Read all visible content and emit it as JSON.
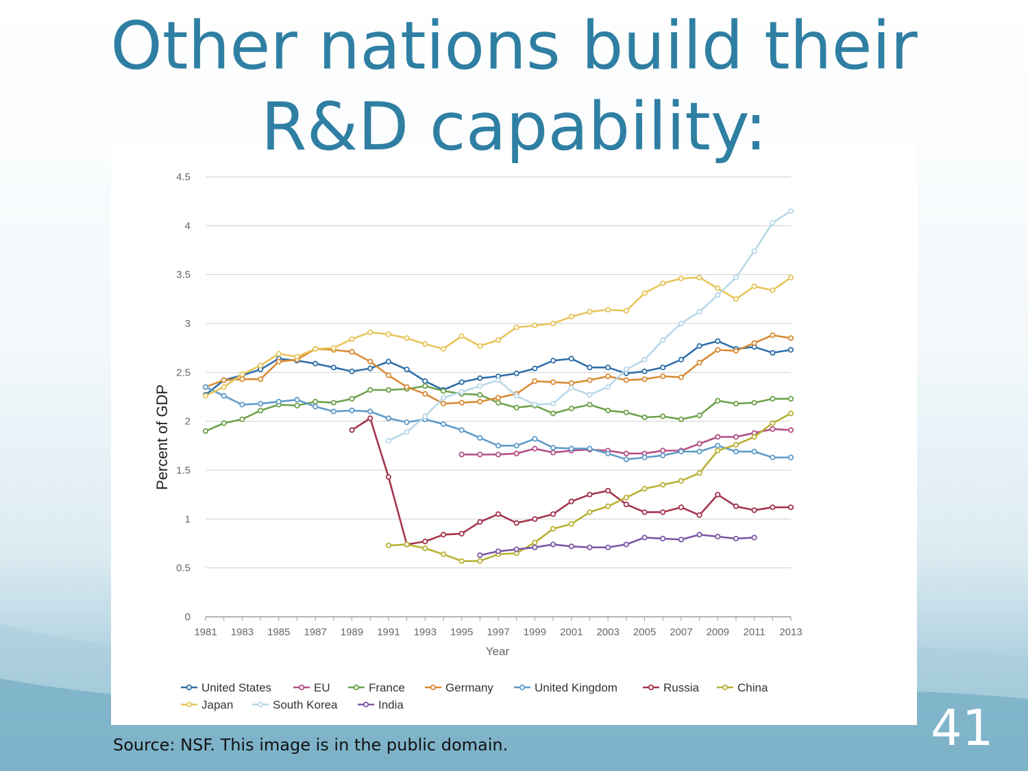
{
  "slide": {
    "title_line1": "Other nations build their",
    "title_line2": "R&D capability:",
    "source": "Source: NSF. This image is in the public domain.",
    "page_number": "41"
  },
  "colors": {
    "title": "#2f7fa3",
    "United States": "#2e6ea9",
    "EU": "#b44f85",
    "France": "#6da14a",
    "Germany": "#d88a33",
    "United Kingdom": "#5d9ac9",
    "Russia": "#a3324c",
    "China": "#b8b033",
    "Japan": "#e8c45a",
    "South Korea": "#b7d8e8",
    "India": "#7b56a3"
  },
  "chart_data": {
    "type": "line",
    "xlabel": "Year",
    "ylabel": "Percent of GDP",
    "ylim": [
      0,
      4.5
    ],
    "yticks": [
      "0",
      "0.5",
      "1",
      "1.5",
      "2",
      "2.5",
      "3",
      "3.5",
      "4",
      "4.5"
    ],
    "xlim": [
      1981,
      2013
    ],
    "xticks": [
      "1981",
      "1983",
      "1985",
      "1987",
      "1989",
      "1991",
      "1993",
      "1995",
      "1997",
      "1999",
      "2001",
      "2003",
      "2005",
      "2007",
      "2009",
      "2011",
      "2013"
    ],
    "grid": true,
    "legend_position": "bottom",
    "series": [
      {
        "name": "United States",
        "start": 1981,
        "values": [
          2.27,
          2.42,
          2.47,
          2.53,
          2.64,
          2.62,
          2.59,
          2.55,
          2.51,
          2.54,
          2.61,
          2.53,
          2.41,
          2.32,
          2.4,
          2.44,
          2.46,
          2.49,
          2.54,
          2.62,
          2.64,
          2.55,
          2.55,
          2.49,
          2.51,
          2.55,
          2.63,
          2.77,
          2.82,
          2.74,
          2.76,
          2.7,
          2.73
        ]
      },
      {
        "name": "EU",
        "start": 1995,
        "values": [
          1.66,
          1.66,
          1.66,
          1.67,
          1.72,
          1.68,
          1.7,
          1.71,
          1.7,
          1.67,
          1.67,
          1.7,
          1.7,
          1.77,
          1.84,
          1.84,
          1.88,
          1.92,
          1.91
        ]
      },
      {
        "name": "France",
        "start": 1981,
        "values": [
          1.9,
          1.98,
          2.02,
          2.11,
          2.17,
          2.16,
          2.2,
          2.19,
          2.23,
          2.32,
          2.32,
          2.33,
          2.36,
          2.31,
          2.28,
          2.27,
          2.19,
          2.14,
          2.16,
          2.08,
          2.13,
          2.17,
          2.11,
          2.09,
          2.04,
          2.05,
          2.02,
          2.06,
          2.21,
          2.18,
          2.19,
          2.23,
          2.23
        ]
      },
      {
        "name": "Germany",
        "start": 1981,
        "values": [
          2.35,
          2.42,
          2.43,
          2.43,
          2.61,
          2.63,
          2.74,
          2.73,
          2.71,
          2.61,
          2.47,
          2.35,
          2.28,
          2.18,
          2.19,
          2.2,
          2.24,
          2.28,
          2.41,
          2.4,
          2.39,
          2.42,
          2.46,
          2.42,
          2.43,
          2.46,
          2.45,
          2.6,
          2.73,
          2.72,
          2.8,
          2.88,
          2.85
        ]
      },
      {
        "name": "United Kingdom",
        "start": 1981,
        "values": [
          2.35,
          2.26,
          2.17,
          2.18,
          2.2,
          2.22,
          2.15,
          2.1,
          2.11,
          2.1,
          2.03,
          1.99,
          2.02,
          1.97,
          1.91,
          1.83,
          1.75,
          1.75,
          1.82,
          1.73,
          1.72,
          1.72,
          1.67,
          1.61,
          1.63,
          1.65,
          1.69,
          1.69,
          1.75,
          1.69,
          1.69,
          1.63,
          1.63
        ]
      },
      {
        "name": "Russia",
        "start": 1989,
        "values": [
          1.91,
          2.03,
          1.43,
          0.74,
          0.77,
          0.84,
          0.85,
          0.97,
          1.05,
          0.96,
          1.0,
          1.05,
          1.18,
          1.25,
          1.29,
          1.15,
          1.07,
          1.07,
          1.12,
          1.04,
          1.25,
          1.13,
          1.09,
          1.12,
          1.12
        ]
      },
      {
        "name": "China",
        "start": 1991,
        "values": [
          0.73,
          0.74,
          0.7,
          0.64,
          0.57,
          0.57,
          0.64,
          0.65,
          0.76,
          0.9,
          0.95,
          1.07,
          1.13,
          1.22,
          1.31,
          1.35,
          1.39,
          1.47,
          1.7,
          1.76,
          1.84,
          1.98,
          2.08
        ]
      },
      {
        "name": "Japan",
        "start": 1981,
        "values": [
          2.26,
          2.35,
          2.48,
          2.57,
          2.69,
          2.66,
          2.74,
          2.75,
          2.84,
          2.91,
          2.89,
          2.85,
          2.79,
          2.74,
          2.87,
          2.77,
          2.83,
          2.96,
          2.98,
          3.0,
          3.07,
          3.12,
          3.14,
          3.13,
          3.31,
          3.41,
          3.46,
          3.47,
          3.36,
          3.25,
          3.38,
          3.34,
          3.47
        ]
      },
      {
        "name": "South Korea",
        "start": 1991,
        "values": [
          1.8,
          1.89,
          2.05,
          2.24,
          2.3,
          2.36,
          2.42,
          2.26,
          2.17,
          2.18,
          2.34,
          2.27,
          2.35,
          2.53,
          2.63,
          2.83,
          3.0,
          3.12,
          3.29,
          3.47,
          3.74,
          4.03,
          4.15
        ]
      },
      {
        "name": "India",
        "start": 1996,
        "values": [
          0.63,
          0.67,
          0.69,
          0.71,
          0.74,
          0.72,
          0.71,
          0.71,
          0.74,
          0.81,
          0.8,
          0.79,
          0.84,
          0.82,
          0.8,
          0.81
        ]
      }
    ],
    "legend": [
      "United States",
      "EU",
      "France",
      "Germany",
      "United Kingdom",
      "Russia",
      "China",
      "Japan",
      "South Korea",
      "India"
    ]
  }
}
